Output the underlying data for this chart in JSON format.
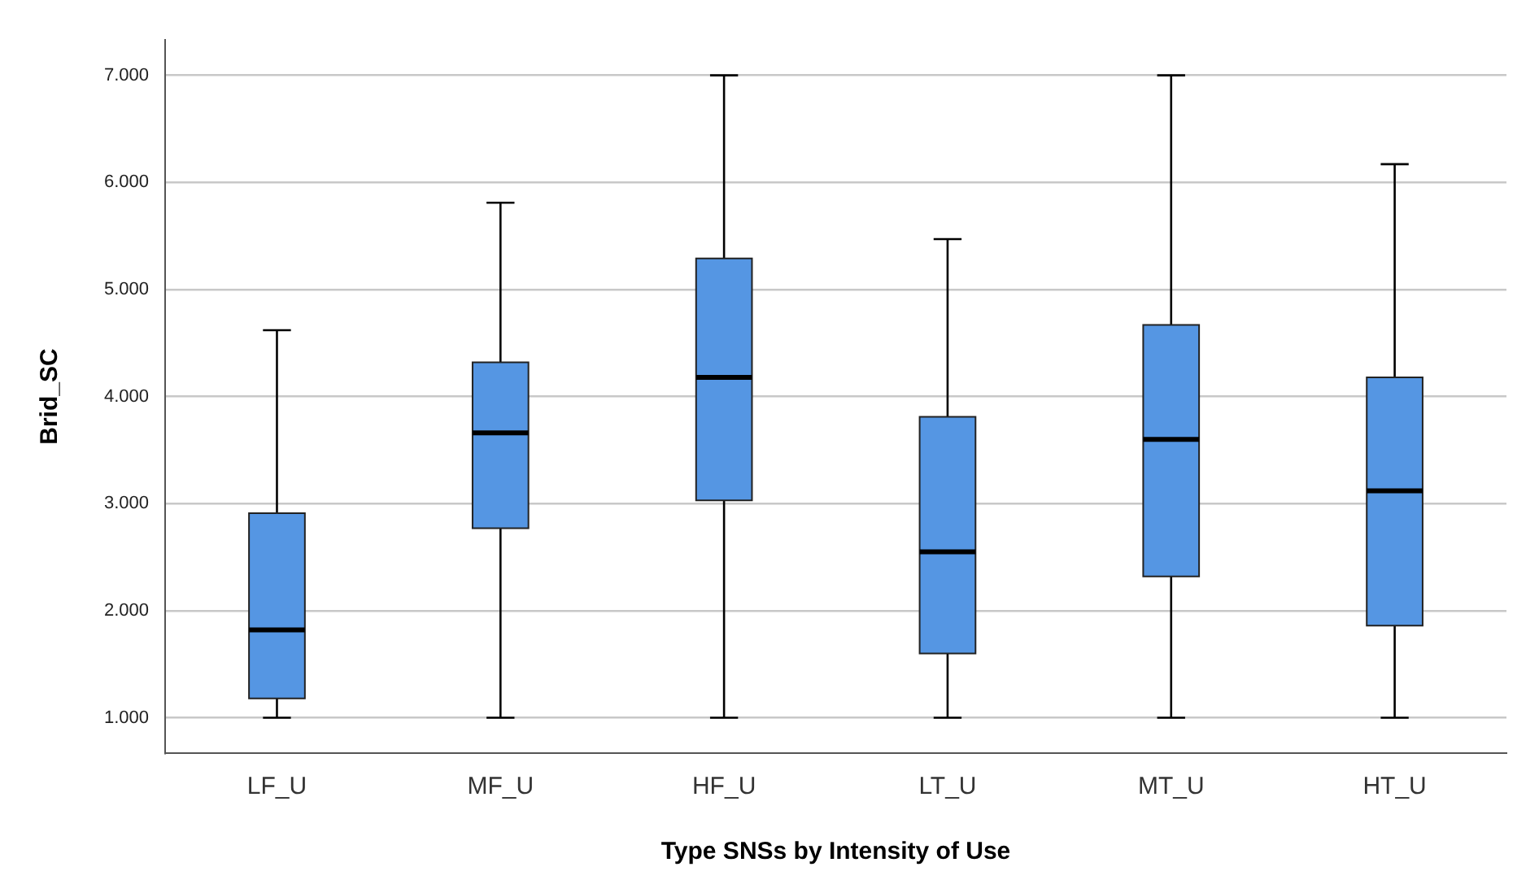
{
  "chart_data": {
    "type": "box",
    "xlabel": "Type SNSs by Intensity of Use",
    "ylabel": "Brid_SC",
    "categories": [
      "LF_U",
      "MF_U",
      "HF_U",
      "LT_U",
      "MT_U",
      "HT_U"
    ],
    "color": "#5596e3",
    "boxes": [
      {
        "low": 1.0,
        "q1": 1.18,
        "median": 1.82,
        "q3": 2.91,
        "high": 4.62
      },
      {
        "low": 1.0,
        "q1": 2.77,
        "median": 3.66,
        "q3": 4.32,
        "high": 5.81
      },
      {
        "low": 1.0,
        "q1": 3.03,
        "median": 4.18,
        "q3": 5.29,
        "high": 7.0
      },
      {
        "low": 1.0,
        "q1": 1.6,
        "median": 2.55,
        "q3": 3.81,
        "high": 5.47
      },
      {
        "low": 1.0,
        "q1": 2.32,
        "median": 3.6,
        "q3": 4.67,
        "high": 7.0
      },
      {
        "low": 1.0,
        "q1": 1.86,
        "median": 3.12,
        "q3": 4.18,
        "high": 6.17
      }
    ],
    "ylim": [
      0.67,
      7.33
    ],
    "yticks": [
      {
        "value": 1,
        "label": "1.000"
      },
      {
        "value": 2,
        "label": "2.000"
      },
      {
        "value": 3,
        "label": "3.000"
      },
      {
        "value": 4,
        "label": "4.000"
      },
      {
        "value": 5,
        "label": "5.000"
      },
      {
        "value": 6,
        "label": "6.000"
      },
      {
        "value": 7,
        "label": "7.000"
      }
    ],
    "grid": "y"
  }
}
